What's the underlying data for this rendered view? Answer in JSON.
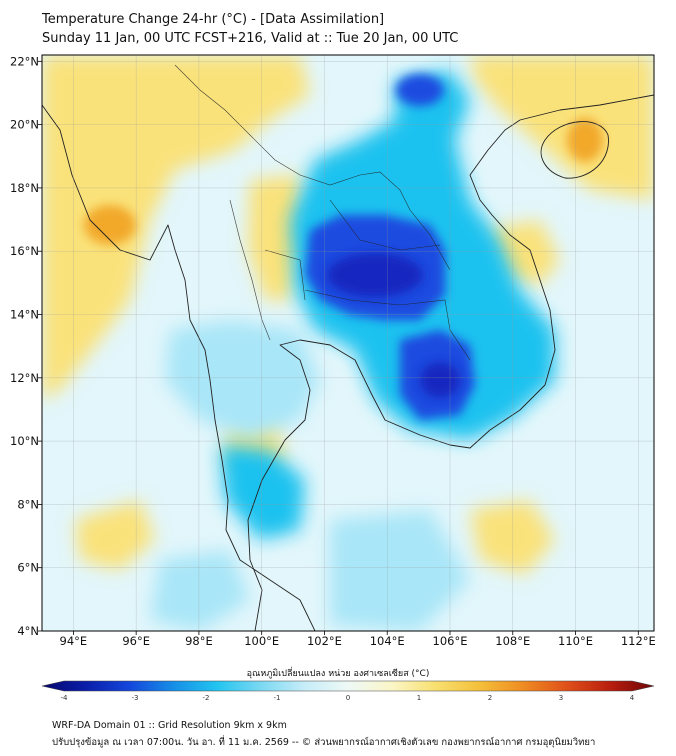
{
  "title": {
    "line1": "Temperature Change 24-hr (°C) - [Data Assimilation]",
    "line2": "Sunday 11 Jan, 00 UTC FCST+216, Valid at :: Tue 20 Jan, 00 UTC"
  },
  "map": {
    "lon_range": [
      93,
      112.5
    ],
    "lat_range": [
      4,
      22.2
    ],
    "lon_ticks": [
      "94°E",
      "96°E",
      "98°E",
      "100°E",
      "102°E",
      "104°E",
      "106°E",
      "108°E",
      "110°E",
      "112°E"
    ],
    "lat_ticks": [
      "4°N",
      "6°N",
      "8°N",
      "10°N",
      "12°N",
      "14°N",
      "16°N",
      "18°N",
      "20°N",
      "22°N"
    ],
    "colors": {
      "background": "#e2f6fb",
      "warm": "#fae27a",
      "warm_strong": "#f2a92a",
      "cool": "#a9e6f8",
      "cool_mid": "#1ec2ef",
      "cool_strong": "#1e4ce0",
      "cool_deep": "#1528c0",
      "coast": "#222222"
    }
  },
  "colorbar": {
    "title": "อุณหภูมิเปลี่ยนแปลง หน่วย องศาเซลเซียส (°C)",
    "tick_labels": [
      "-4",
      "-3",
      "-2",
      "-1",
      "0",
      "1",
      "2",
      "3",
      "4"
    ],
    "min": -4,
    "max": 4,
    "stops": [
      "#06066e",
      "#0a1ea8",
      "#1446dc",
      "#168ee6",
      "#22c4f0",
      "#7ad8f2",
      "#c6edf8",
      "#eef9f6",
      "#fbf6c8",
      "#f8e070",
      "#f4c03a",
      "#ef8c22",
      "#e0501a",
      "#b81e0e",
      "#6e0606"
    ]
  },
  "footer": {
    "line1": "WRF-DA Domain 01 :: Grid Resolution 9km x 9km",
    "line2": "ปรับปรุงข้อมูล ณ เวลา 07:00น. วัน อา. ที่ 11 ม.ค. 2569 -- © ส่วนพยากรณ์อากาศเชิงตัวเลข กองพยากรณ์อากาศ กรมอุตุนิยมวิทยา"
  }
}
